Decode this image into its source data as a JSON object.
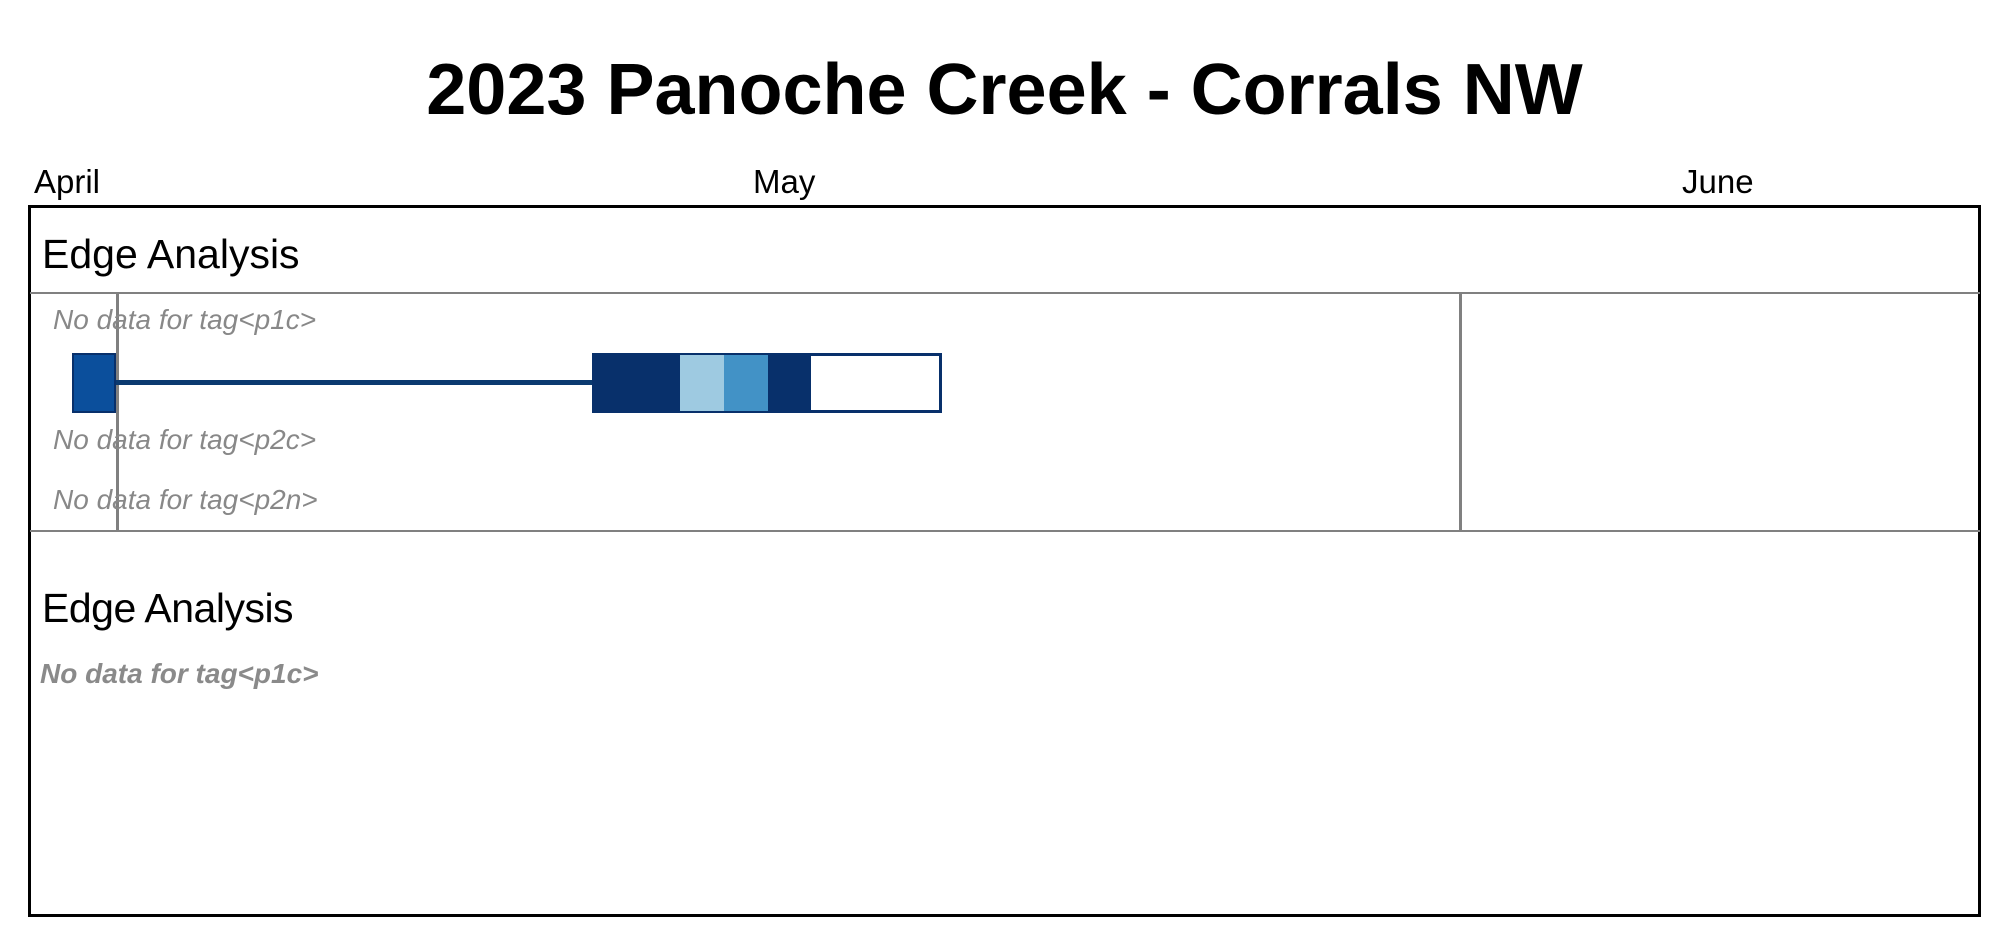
{
  "title": "2023 Panoche Creek - Corrals NW",
  "months": [
    "April",
    "May",
    "June"
  ],
  "section_1": {
    "heading": "Edge Analysis",
    "no_data": [
      "No data for tag<p1c>",
      "No data for tag<p2c>",
      "No data for tag<p2n>"
    ]
  },
  "section_2": {
    "heading": "Edge Analysis",
    "no_data": [
      "No data for tag<p1c>"
    ]
  },
  "chart_data": {
    "type": "gantt",
    "title": "2023 Panoche Creek - Corrals NW",
    "x_axis_labels": [
      "April",
      "May",
      "June"
    ],
    "rows": [
      {
        "track": "edge-analysis",
        "segments": [
          {
            "start": "2023-04-04",
            "end": "2023-04-06",
            "color": "#0B4F9C"
          },
          {
            "start": "2023-04-06",
            "end": "2023-04-29",
            "type": "connector",
            "color": "#0B3A70"
          },
          {
            "start": "2023-04-29",
            "end": "2023-05-03",
            "color": "#08306B"
          },
          {
            "start": "2023-05-03",
            "end": "2023-05-05",
            "color": "#9ECAE1"
          },
          {
            "start": "2023-05-05",
            "end": "2023-05-07",
            "color": "#4292C6"
          },
          {
            "start": "2023-05-07",
            "end": "2023-05-09",
            "color": "#08306B"
          },
          {
            "start": "2023-05-09",
            "end": "2023-05-15",
            "color": "#FFFFFF"
          }
        ]
      }
    ],
    "reference_lines": [
      "2023-04-06",
      "2023-06-09"
    ]
  }
}
